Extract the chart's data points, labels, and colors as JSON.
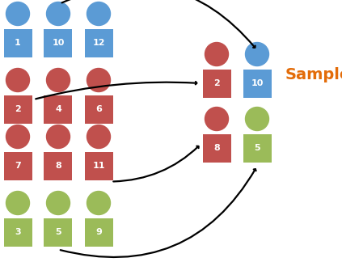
{
  "blue_color": "#5B9BD5",
  "red_color": "#C0504D",
  "green_color": "#9BBB59",
  "text_color": "#FFFFFF",
  "sample_label_color": "#E36C09",
  "background_color": "#FFFFFF",
  "arrow_color": "#000000",
  "left_groups": [
    {
      "color": "blue",
      "items": [
        {
          "label": "1",
          "col": 0,
          "row": 0
        },
        {
          "label": "10",
          "col": 1,
          "row": 0
        },
        {
          "label": "12",
          "col": 2,
          "row": 0
        }
      ]
    },
    {
      "color": "red",
      "items": [
        {
          "label": "2",
          "col": 0,
          "row": 1
        },
        {
          "label": "4",
          "col": 1,
          "row": 1
        },
        {
          "label": "6",
          "col": 2,
          "row": 1
        },
        {
          "label": "7",
          "col": 0,
          "row": 2
        },
        {
          "label": "8",
          "col": 1,
          "row": 2
        },
        {
          "label": "11",
          "col": 2,
          "row": 2
        }
      ]
    },
    {
      "color": "green",
      "items": [
        {
          "label": "3",
          "col": 0,
          "row": 3
        },
        {
          "label": "5",
          "col": 1,
          "row": 3
        },
        {
          "label": "9",
          "col": 2,
          "row": 3
        }
      ]
    }
  ],
  "sample_items": [
    {
      "label": "2",
      "color": "red",
      "col": 0,
      "row": 0
    },
    {
      "label": "10",
      "color": "blue",
      "col": 1,
      "row": 0
    },
    {
      "label": "8",
      "color": "red",
      "col": 0,
      "row": 1
    },
    {
      "label": "5",
      "color": "green",
      "col": 1,
      "row": 1
    }
  ],
  "sample_label": "Sample",
  "sample_label_fontsize": 14
}
